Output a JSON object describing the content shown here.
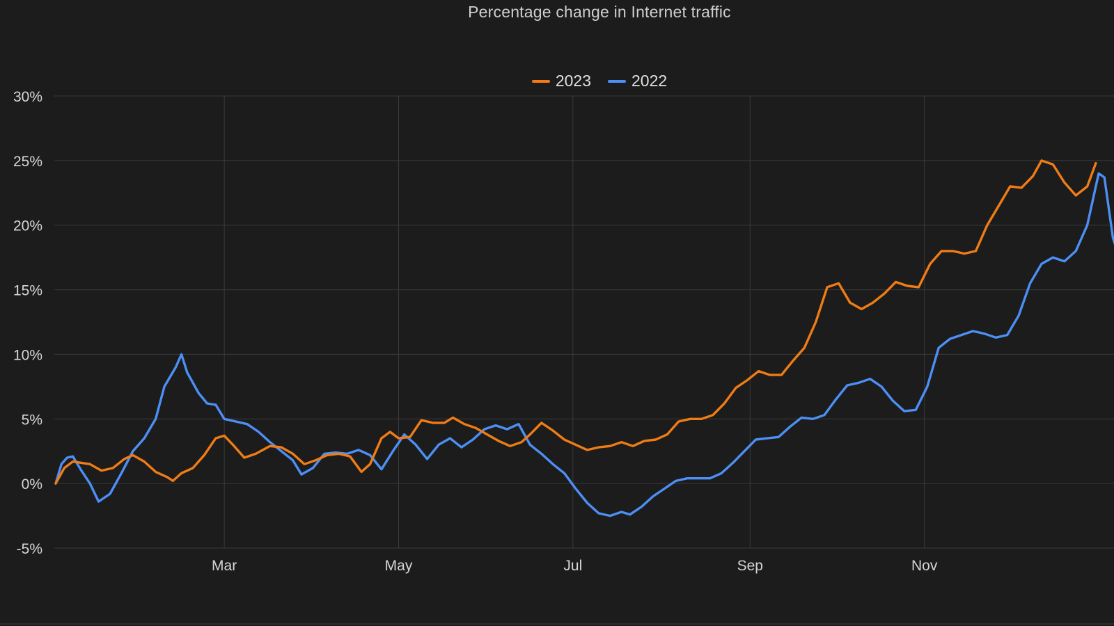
{
  "chart_data": {
    "type": "line",
    "title": "Percentage change in Internet traffic",
    "xlabel": "",
    "ylabel": "",
    "x_axis": {
      "domain": [
        "2023-01-01",
        "2024-01-01"
      ],
      "ticks": [
        {
          "label": "Mar",
          "date": "2023-03-01"
        },
        {
          "label": "May",
          "date": "2023-05-01"
        },
        {
          "label": "Jul",
          "date": "2023-07-01"
        },
        {
          "label": "Sep",
          "date": "2023-09-01"
        },
        {
          "label": "Nov",
          "date": "2023-11-01"
        }
      ]
    },
    "y_axis": {
      "ylim": [
        -5,
        30
      ],
      "ticks": [
        30,
        25,
        20,
        15,
        10,
        5,
        0,
        -5
      ],
      "tick_labels": [
        "30%",
        "25%",
        "20%",
        "15%",
        "10%",
        "5%",
        "0%",
        "-5%"
      ]
    },
    "grid": true,
    "legend_placement": "top-center",
    "series": [
      {
        "name": "2023",
        "color": "#f07c16",
        "points": [
          [
            "2023-01-01",
            0.0
          ],
          [
            "2023-01-04",
            1.2
          ],
          [
            "2023-01-07",
            1.7
          ],
          [
            "2023-01-10",
            1.6
          ],
          [
            "2023-01-13",
            1.5
          ],
          [
            "2023-01-17",
            1.0
          ],
          [
            "2023-01-21",
            1.2
          ],
          [
            "2023-01-25",
            1.9
          ],
          [
            "2023-01-28",
            2.2
          ],
          [
            "2023-02-01",
            1.7
          ],
          [
            "2023-02-05",
            0.9
          ],
          [
            "2023-02-09",
            0.5
          ],
          [
            "2023-02-11",
            0.2
          ],
          [
            "2023-02-14",
            0.8
          ],
          [
            "2023-02-18",
            1.2
          ],
          [
            "2023-02-22",
            2.2
          ],
          [
            "2023-02-26",
            3.5
          ],
          [
            "2023-03-01",
            3.7
          ],
          [
            "2023-03-04",
            3.0
          ],
          [
            "2023-03-08",
            2.0
          ],
          [
            "2023-03-12",
            2.3
          ],
          [
            "2023-03-17",
            2.9
          ],
          [
            "2023-03-21",
            2.8
          ],
          [
            "2023-03-25",
            2.3
          ],
          [
            "2023-03-29",
            1.5
          ],
          [
            "2023-04-02",
            1.8
          ],
          [
            "2023-04-06",
            2.2
          ],
          [
            "2023-04-10",
            2.3
          ],
          [
            "2023-04-14",
            2.1
          ],
          [
            "2023-04-18",
            0.9
          ],
          [
            "2023-04-21",
            1.5
          ],
          [
            "2023-04-25",
            3.5
          ],
          [
            "2023-04-28",
            4.0
          ],
          [
            "2023-05-01",
            3.5
          ],
          [
            "2023-05-05",
            3.6
          ],
          [
            "2023-05-09",
            4.9
          ],
          [
            "2023-05-13",
            4.7
          ],
          [
            "2023-05-17",
            4.7
          ],
          [
            "2023-05-20",
            5.1
          ],
          [
            "2023-05-24",
            4.6
          ],
          [
            "2023-05-28",
            4.3
          ],
          [
            "2023-06-01",
            3.8
          ],
          [
            "2023-06-05",
            3.3
          ],
          [
            "2023-06-09",
            2.9
          ],
          [
            "2023-06-13",
            3.2
          ],
          [
            "2023-06-16",
            3.8
          ],
          [
            "2023-06-20",
            4.7
          ],
          [
            "2023-06-24",
            4.1
          ],
          [
            "2023-06-28",
            3.4
          ],
          [
            "2023-07-02",
            3.0
          ],
          [
            "2023-07-06",
            2.6
          ],
          [
            "2023-07-10",
            2.8
          ],
          [
            "2023-07-14",
            2.9
          ],
          [
            "2023-07-18",
            3.2
          ],
          [
            "2023-07-22",
            2.9
          ],
          [
            "2023-07-26",
            3.3
          ],
          [
            "2023-07-30",
            3.4
          ],
          [
            "2023-08-03",
            3.8
          ],
          [
            "2023-08-07",
            4.8
          ],
          [
            "2023-08-11",
            5.0
          ],
          [
            "2023-08-15",
            5.0
          ],
          [
            "2023-08-19",
            5.3
          ],
          [
            "2023-08-23",
            6.2
          ],
          [
            "2023-08-27",
            7.4
          ],
          [
            "2023-08-31",
            8.0
          ],
          [
            "2023-09-04",
            8.7
          ],
          [
            "2023-09-08",
            8.4
          ],
          [
            "2023-09-12",
            8.4
          ],
          [
            "2023-09-16",
            9.5
          ],
          [
            "2023-09-20",
            10.5
          ],
          [
            "2023-09-24",
            12.5
          ],
          [
            "2023-09-28",
            15.2
          ],
          [
            "2023-10-02",
            15.5
          ],
          [
            "2023-10-06",
            14.0
          ],
          [
            "2023-10-10",
            13.5
          ],
          [
            "2023-10-14",
            14.0
          ],
          [
            "2023-10-18",
            14.7
          ],
          [
            "2023-10-22",
            15.6
          ],
          [
            "2023-10-26",
            15.3
          ],
          [
            "2023-10-30",
            15.2
          ],
          [
            "2023-11-03",
            17.0
          ],
          [
            "2023-11-07",
            18.0
          ],
          [
            "2023-11-11",
            18.0
          ],
          [
            "2023-11-15",
            17.8
          ],
          [
            "2023-11-19",
            18.0
          ],
          [
            "2023-11-23",
            20.0
          ],
          [
            "2023-11-27",
            21.5
          ],
          [
            "2023-12-01",
            23.0
          ],
          [
            "2023-12-05",
            22.9
          ],
          [
            "2023-12-09",
            23.8
          ],
          [
            "2023-12-12",
            25.0
          ],
          [
            "2023-12-16",
            24.7
          ],
          [
            "2023-12-20",
            23.3
          ],
          [
            "2023-12-24",
            22.3
          ],
          [
            "2023-12-28",
            23.0
          ],
          [
            "2023-12-31",
            24.8
          ]
        ]
      },
      {
        "name": "2022",
        "color": "#4c8ff5",
        "points": [
          [
            "2023-01-01",
            0.0
          ],
          [
            "2023-01-03",
            1.5
          ],
          [
            "2023-01-05",
            2.0
          ],
          [
            "2023-01-07",
            2.1
          ],
          [
            "2023-01-10",
            1.0
          ],
          [
            "2023-01-13",
            0.0
          ],
          [
            "2023-01-16",
            -1.4
          ],
          [
            "2023-01-20",
            -0.8
          ],
          [
            "2023-01-24",
            0.8
          ],
          [
            "2023-01-28",
            2.5
          ],
          [
            "2023-02-01",
            3.5
          ],
          [
            "2023-02-05",
            5.0
          ],
          [
            "2023-02-08",
            7.5
          ],
          [
            "2023-02-12",
            9.0
          ],
          [
            "2023-02-14",
            10.0
          ],
          [
            "2023-02-16",
            8.6
          ],
          [
            "2023-02-20",
            7.0
          ],
          [
            "2023-02-23",
            6.2
          ],
          [
            "2023-02-26",
            6.1
          ],
          [
            "2023-03-01",
            5.0
          ],
          [
            "2023-03-05",
            4.8
          ],
          [
            "2023-03-09",
            4.6
          ],
          [
            "2023-03-13",
            4.0
          ],
          [
            "2023-03-17",
            3.2
          ],
          [
            "2023-03-21",
            2.5
          ],
          [
            "2023-03-25",
            1.8
          ],
          [
            "2023-03-28",
            0.7
          ],
          [
            "2023-04-01",
            1.2
          ],
          [
            "2023-04-05",
            2.3
          ],
          [
            "2023-04-09",
            2.4
          ],
          [
            "2023-04-13",
            2.3
          ],
          [
            "2023-04-17",
            2.6
          ],
          [
            "2023-04-21",
            2.2
          ],
          [
            "2023-04-25",
            1.1
          ],
          [
            "2023-04-29",
            2.5
          ],
          [
            "2023-05-03",
            3.8
          ],
          [
            "2023-05-07",
            3.0
          ],
          [
            "2023-05-11",
            1.9
          ],
          [
            "2023-05-15",
            3.0
          ],
          [
            "2023-05-19",
            3.5
          ],
          [
            "2023-05-23",
            2.8
          ],
          [
            "2023-05-27",
            3.4
          ],
          [
            "2023-05-31",
            4.2
          ],
          [
            "2023-06-04",
            4.5
          ],
          [
            "2023-06-08",
            4.2
          ],
          [
            "2023-06-12",
            4.6
          ],
          [
            "2023-06-16",
            3.0
          ],
          [
            "2023-06-20",
            2.3
          ],
          [
            "2023-06-24",
            1.5
          ],
          [
            "2023-06-28",
            0.8
          ],
          [
            "2023-07-02",
            -0.4
          ],
          [
            "2023-07-06",
            -1.5
          ],
          [
            "2023-07-10",
            -2.3
          ],
          [
            "2023-07-14",
            -2.5
          ],
          [
            "2023-07-18",
            -2.2
          ],
          [
            "2023-07-21",
            -2.4
          ],
          [
            "2023-07-25",
            -1.8
          ],
          [
            "2023-07-29",
            -1.0
          ],
          [
            "2023-08-02",
            -0.4
          ],
          [
            "2023-08-06",
            0.2
          ],
          [
            "2023-08-10",
            0.4
          ],
          [
            "2023-08-14",
            0.4
          ],
          [
            "2023-08-18",
            0.4
          ],
          [
            "2023-08-22",
            0.8
          ],
          [
            "2023-08-26",
            1.6
          ],
          [
            "2023-08-30",
            2.5
          ],
          [
            "2023-09-03",
            3.4
          ],
          [
            "2023-09-07",
            3.5
          ],
          [
            "2023-09-11",
            3.6
          ],
          [
            "2023-09-15",
            4.4
          ],
          [
            "2023-09-19",
            5.1
          ],
          [
            "2023-09-23",
            5.0
          ],
          [
            "2023-09-27",
            5.3
          ],
          [
            "2023-10-01",
            6.5
          ],
          [
            "2023-10-05",
            7.6
          ],
          [
            "2023-10-09",
            7.8
          ],
          [
            "2023-10-13",
            8.1
          ],
          [
            "2023-10-17",
            7.5
          ],
          [
            "2023-10-21",
            6.4
          ],
          [
            "2023-10-25",
            5.6
          ],
          [
            "2023-10-29",
            5.7
          ],
          [
            "2023-11-02",
            7.5
          ],
          [
            "2023-11-06",
            10.5
          ],
          [
            "2023-11-10",
            11.2
          ],
          [
            "2023-11-14",
            11.5
          ],
          [
            "2023-11-18",
            11.8
          ],
          [
            "2023-11-22",
            11.6
          ],
          [
            "2023-11-26",
            11.3
          ],
          [
            "2023-11-30",
            11.5
          ],
          [
            "2023-12-04",
            13.0
          ],
          [
            "2023-12-08",
            15.5
          ],
          [
            "2023-12-12",
            17.0
          ],
          [
            "2023-12-16",
            17.5
          ],
          [
            "2023-12-20",
            17.2
          ],
          [
            "2023-12-24",
            18.0
          ],
          [
            "2023-12-28",
            20.0
          ],
          [
            "2024-01-01",
            24.0
          ],
          [
            "2024-01-03",
            23.7
          ],
          [
            "2024-01-06",
            19.0
          ],
          [
            "2024-01-09",
            17.0
          ]
        ]
      }
    ]
  }
}
